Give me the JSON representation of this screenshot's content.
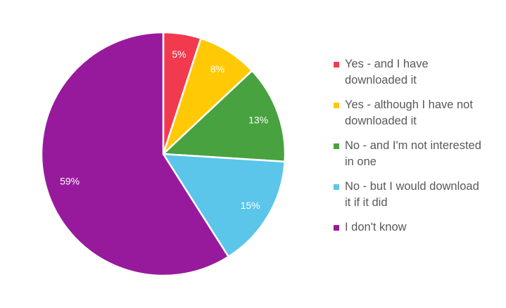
{
  "chart_data": {
    "type": "pie",
    "title": "",
    "slices": [
      {
        "label": "Yes - and I have downloaded it",
        "value": 5,
        "display": "5%",
        "color": "#F23A4E",
        "text_color": "#ffffff"
      },
      {
        "label": "Yes - although I have not downloaded it",
        "value": 8,
        "display": "8%",
        "color": "#FFCA05",
        "text_color": "#ffffff"
      },
      {
        "label": "No - and I'm not interested in one",
        "value": 13,
        "display": "13%",
        "color": "#47A23F",
        "text_color": "#ffffff"
      },
      {
        "label": "No - but I would download it if it did",
        "value": 15,
        "display": "15%",
        "color": "#5BC5EA",
        "text_color": "#ffffff"
      },
      {
        "label": "I don't know",
        "value": 59,
        "display": "59%",
        "color": "#981A9C",
        "text_color": "#ffffff"
      }
    ],
    "legend_position": "right",
    "start_angle": "top, clockwise"
  },
  "legend": {
    "items": [
      {
        "line1": "Yes - and I have",
        "line2": "downloaded it",
        "color": "#F23A4E"
      },
      {
        "line1": "Yes - although I have not",
        "line2": "downloaded it",
        "color": "#FFCA05"
      },
      {
        "line1": "No - and I'm not interested",
        "line2": "in one",
        "color": "#47A23F"
      },
      {
        "line1": "No - but I would download",
        "line2": "it if it did",
        "color": "#5BC5EA"
      },
      {
        "line1": "I don't know",
        "line2": "",
        "color": "#981A9C"
      }
    ]
  }
}
